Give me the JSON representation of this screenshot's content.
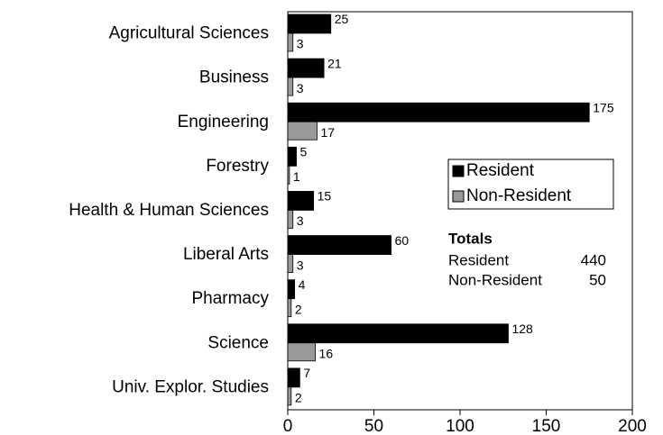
{
  "chart_data": {
    "type": "hbar",
    "categories": [
      "Agricultural Sciences",
      "Business",
      "Engineering",
      "Forestry",
      "Health & Human Sciences",
      "Liberal Arts",
      "Pharmacy",
      "Science",
      "Univ. Explor. Studies"
    ],
    "series": [
      {
        "name": "Resident",
        "color": "#000000",
        "values": [
          25,
          21,
          175,
          5,
          15,
          60,
          4,
          128,
          7
        ]
      },
      {
        "name": "Non-Resident",
        "color": "#999999",
        "values": [
          3,
          3,
          17,
          1,
          3,
          3,
          2,
          16,
          2
        ]
      }
    ],
    "xlim": [
      0,
      200
    ],
    "xticks": [
      0,
      50,
      100,
      150,
      200
    ],
    "totals": {
      "title": "Totals",
      "rows": [
        {
          "label": "Resident",
          "value": 440
        },
        {
          "label": "Non-Resident",
          "value": 50
        }
      ]
    }
  }
}
